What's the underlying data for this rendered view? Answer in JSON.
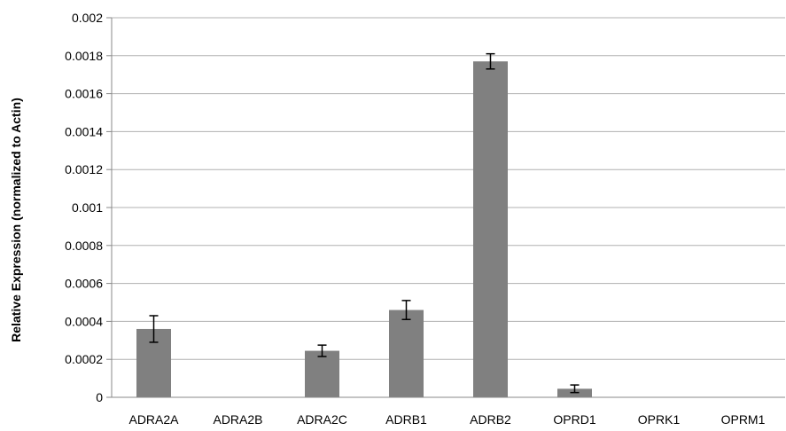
{
  "chart_data": {
    "type": "bar",
    "title": "",
    "xlabel": "",
    "ylabel": "Relative Expression (normalized to Actin)",
    "ylim": [
      0,
      0.002
    ],
    "y_ticks": [
      "0",
      "0.0002",
      "0.0004",
      "0.0006",
      "0.0008",
      "0.001",
      "0.0012",
      "0.0014",
      "0.0016",
      "0.0018",
      "0.002"
    ],
    "grid": "horizontal",
    "legend": "none",
    "categories": [
      "ADRA2A",
      "ADRA2B",
      "ADRA2C",
      "ADRB1",
      "ADRB2",
      "OPRD1",
      "OPRK1",
      "OPRM1"
    ],
    "values": [
      0.00036,
      0.0,
      0.000245,
      0.00046,
      0.00177,
      4.5e-05,
      2e-06,
      1e-06
    ],
    "error": [
      7e-05,
      0.0,
      3e-05,
      5e-05,
      4e-05,
      2e-05,
      0.0,
      0.0
    ],
    "bar_color": "#808080",
    "grid_color": "#b0b0b0"
  }
}
